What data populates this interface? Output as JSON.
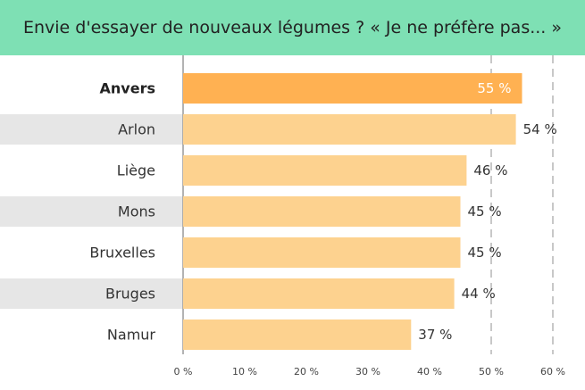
{
  "header": {
    "title": "Envie d'essayer de nouveaux légumes ? « Je ne préfère pas... »"
  },
  "colors": {
    "header_bg": "#7ee0b4",
    "highlight_bar": "#ffb152",
    "bar": "#fdd28f",
    "stripe_bg": "#e6e6e6"
  },
  "chart_data": {
    "type": "bar",
    "orientation": "horizontal",
    "categories": [
      "Anvers",
      "Arlon",
      "Liège",
      "Mons",
      "Bruxelles",
      "Bruges",
      "Namur"
    ],
    "values": [
      55,
      54,
      46,
      45,
      45,
      44,
      37
    ],
    "value_labels": [
      "55 %",
      "54 %",
      "46 %",
      "45 %",
      "45 %",
      "44 %",
      "37 %"
    ],
    "highlighted_category": "Anvers",
    "xlim": [
      0,
      60
    ],
    "x_ticks": [
      0,
      10,
      20,
      30,
      40,
      50,
      60
    ],
    "x_tick_labels": [
      "0 %",
      "10 %",
      "20 %",
      "30 %",
      "40 %",
      "50 %",
      "60 %"
    ],
    "reference_lines": [
      50,
      60
    ]
  }
}
